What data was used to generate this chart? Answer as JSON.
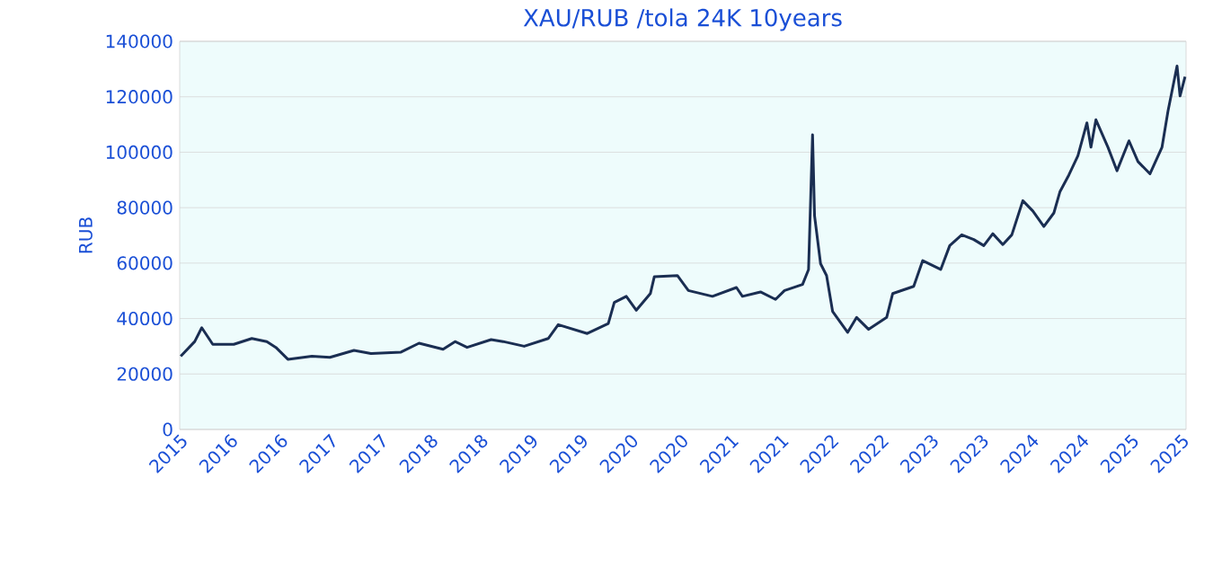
{
  "chart_data": {
    "type": "line",
    "title": "XAU/RUB /tola 24K 10years",
    "ylabel": "RUB",
    "x": [
      2015.51,
      2015.65,
      2015.72,
      2015.83,
      2016.04,
      2016.22,
      2016.37,
      2016.46,
      2016.58,
      2016.82,
      2017.0,
      2017.24,
      2017.41,
      2017.71,
      2017.89,
      2018.13,
      2018.25,
      2018.37,
      2018.61,
      2018.73,
      2018.94,
      2019.18,
      2019.28,
      2019.57,
      2019.78,
      2019.84,
      2019.96,
      2020.06,
      2020.2,
      2020.24,
      2020.47,
      2020.58,
      2020.82,
      2021.06,
      2021.12,
      2021.3,
      2021.45,
      2021.54,
      2021.72,
      2021.78,
      2021.82,
      2021.84,
      2021.9,
      2021.96,
      2022.02,
      2022.17,
      2022.26,
      2022.38,
      2022.56,
      2022.62,
      2022.83,
      2022.92,
      2023.1,
      2023.19,
      2023.31,
      2023.43,
      2023.53,
      2023.62,
      2023.72,
      2023.81,
      2023.92,
      2024.02,
      2024.13,
      2024.23,
      2024.29,
      2024.38,
      2024.47,
      2024.56,
      2024.6,
      2024.65,
      2024.77,
      2024.86,
      2024.98,
      2025.07,
      2025.19,
      2025.31,
      2025.37,
      2025.46,
      2025.49,
      2025.54
    ],
    "series": [
      {
        "color": "#1a2e52",
        "values": [
          26400,
          31700,
          36700,
          30700,
          30700,
          32800,
          31700,
          29600,
          25300,
          26400,
          26000,
          28500,
          27400,
          27900,
          31100,
          28900,
          31700,
          29600,
          32400,
          31700,
          30000,
          32800,
          37800,
          34600,
          38200,
          45800,
          48000,
          43000,
          49000,
          55100,
          55500,
          50100,
          48000,
          51200,
          48000,
          49600,
          46900,
          50100,
          52300,
          57700,
          106300,
          77100,
          59800,
          55500,
          42600,
          35000,
          40400,
          36100,
          40400,
          49000,
          51600,
          60900,
          57700,
          66300,
          70200,
          68500,
          66300,
          70600,
          66700,
          70200,
          82500,
          78800,
          73200,
          78100,
          85700,
          91800,
          98700,
          110600,
          101800,
          111700,
          101800,
          93300,
          104100,
          96600,
          92200,
          101800,
          114900,
          131100,
          120300,
          127200
        ]
      }
    ],
    "xlim": [
      2015.5,
      2025.55
    ],
    "xticks": [
      {
        "value": 2015.5,
        "label": "2015"
      },
      {
        "value": 2016.0,
        "label": "2016"
      },
      {
        "value": 2016.5,
        "label": "2016"
      },
      {
        "value": 2017.0,
        "label": "2017"
      },
      {
        "value": 2017.5,
        "label": "2017"
      },
      {
        "value": 2018.0,
        "label": "2018"
      },
      {
        "value": 2018.5,
        "label": "2018"
      },
      {
        "value": 2019.0,
        "label": "2019"
      },
      {
        "value": 2019.5,
        "label": "2019"
      },
      {
        "value": 2020.0,
        "label": "2020"
      },
      {
        "value": 2020.5,
        "label": "2020"
      },
      {
        "value": 2021.0,
        "label": "2021"
      },
      {
        "value": 2021.5,
        "label": "2021"
      },
      {
        "value": 2022.0,
        "label": "2022"
      },
      {
        "value": 2022.5,
        "label": "2022"
      },
      {
        "value": 2023.0,
        "label": "2023"
      },
      {
        "value": 2023.5,
        "label": "2023"
      },
      {
        "value": 2024.0,
        "label": "2024"
      },
      {
        "value": 2024.5,
        "label": "2024"
      },
      {
        "value": 2025.0,
        "label": "2025"
      },
      {
        "value": 2025.5,
        "label": "2025"
      }
    ],
    "ylim": [
      0,
      140000
    ],
    "yticks": [
      0,
      20000,
      40000,
      60000,
      80000,
      100000,
      120000,
      140000
    ],
    "grid": "y",
    "marker": "none",
    "line_style": "solid"
  }
}
